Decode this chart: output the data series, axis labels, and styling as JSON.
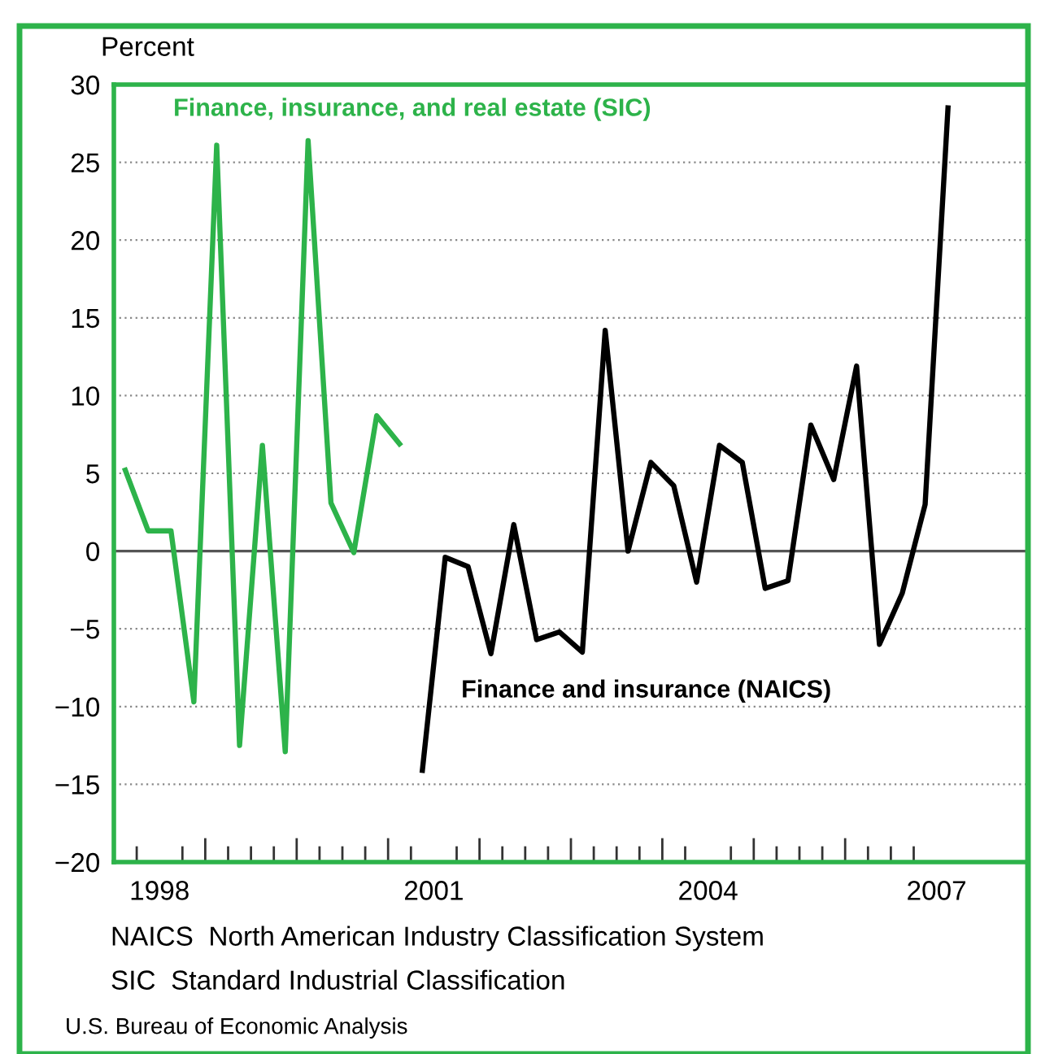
{
  "chart_data": {
    "type": "line",
    "ylabel": "Percent",
    "series": [
      {
        "name": "Finance, insurance, and real estate (SIC)",
        "color": "#2db34a",
        "x": [
          1998.125,
          1998.375,
          1998.625,
          1998.875,
          1999.125,
          1999.375,
          1999.625,
          1999.875,
          2000.125,
          2000.375,
          2000.625,
          2000.875,
          2001.125
        ],
        "values": [
          5.2,
          1.3,
          1.3,
          -9.7,
          26.1,
          -12.5,
          6.8,
          -12.9,
          26.4,
          3.1,
          -0.1,
          8.7,
          6.9
        ]
      },
      {
        "name": "Finance and insurance (NAICS)",
        "color": "#000000",
        "x": [
          2001.375,
          2001.625,
          2001.875,
          2002.125,
          2002.375,
          2002.625,
          2002.875,
          2003.125,
          2003.375,
          2003.625,
          2003.875,
          2004.125,
          2004.375,
          2004.625,
          2004.875,
          2005.125,
          2005.375,
          2005.625,
          2005.875,
          2006.125,
          2006.375,
          2006.625,
          2006.875,
          2007.125
        ],
        "values": [
          -14.1,
          -0.4,
          -1.0,
          -6.6,
          1.7,
          -5.7,
          -5.2,
          -6.5,
          14.2,
          0,
          5.7,
          4.2,
          -2.0,
          6.8,
          5.7,
          -2.4,
          -1.9,
          8.1,
          4.6,
          11.9,
          -6.0,
          -2.7,
          3.0,
          28.5
        ]
      }
    ],
    "xlim": [
      1998,
      2008
    ],
    "xticks": [
      {
        "value": 1998.25,
        "label": null
      },
      {
        "value": 1998.5,
        "label": "1998"
      },
      {
        "value": 1998.75,
        "label": null
      },
      {
        "value": 1999,
        "label": null
      },
      {
        "value": 1999.25,
        "label": null
      },
      {
        "value": 1999.5,
        "label": null
      },
      {
        "value": 1999.75,
        "label": null
      },
      {
        "value": 2000,
        "label": null
      },
      {
        "value": 2000.25,
        "label": null
      },
      {
        "value": 2000.5,
        "label": null
      },
      {
        "value": 2000.75,
        "label": null
      },
      {
        "value": 2001,
        "label": null
      },
      {
        "value": 2001.25,
        "label": null
      },
      {
        "value": 2001.5,
        "label": "2001"
      },
      {
        "value": 2001.75,
        "label": null
      },
      {
        "value": 2002,
        "label": null
      },
      {
        "value": 2002.25,
        "label": null
      },
      {
        "value": 2002.5,
        "label": null
      },
      {
        "value": 2002.75,
        "label": null
      },
      {
        "value": 2003,
        "label": null
      },
      {
        "value": 2003.25,
        "label": null
      },
      {
        "value": 2003.5,
        "label": null
      },
      {
        "value": 2003.75,
        "label": null
      },
      {
        "value": 2004,
        "label": null
      },
      {
        "value": 2004.25,
        "label": null
      },
      {
        "value": 2004.5,
        "label": "2004"
      },
      {
        "value": 2004.75,
        "label": null
      },
      {
        "value": 2005,
        "label": null
      },
      {
        "value": 2005.25,
        "label": null
      },
      {
        "value": 2005.5,
        "label": null
      },
      {
        "value": 2005.75,
        "label": null
      },
      {
        "value": 2006,
        "label": null
      },
      {
        "value": 2006.25,
        "label": null
      },
      {
        "value": 2006.5,
        "label": null
      },
      {
        "value": 2006.75,
        "label": null
      },
      {
        "value": 2007,
        "label": "2007"
      }
    ],
    "ylim": [
      -20,
      30
    ],
    "yticks": [
      -20,
      -15,
      -10,
      -5,
      0,
      5,
      10,
      15,
      20,
      25,
      30
    ],
    "grid": "y",
    "legend": false,
    "line_style": "solid",
    "marker": "none",
    "ref_lines": [
      {
        "axis": "y",
        "value": 0,
        "color": "#555555"
      }
    ],
    "annotations": [
      "NAICS  North American Industry Classification System",
      "SIC  Standard Industrial Classification",
      "U.S. Bureau of Economic Analysis"
    ]
  }
}
